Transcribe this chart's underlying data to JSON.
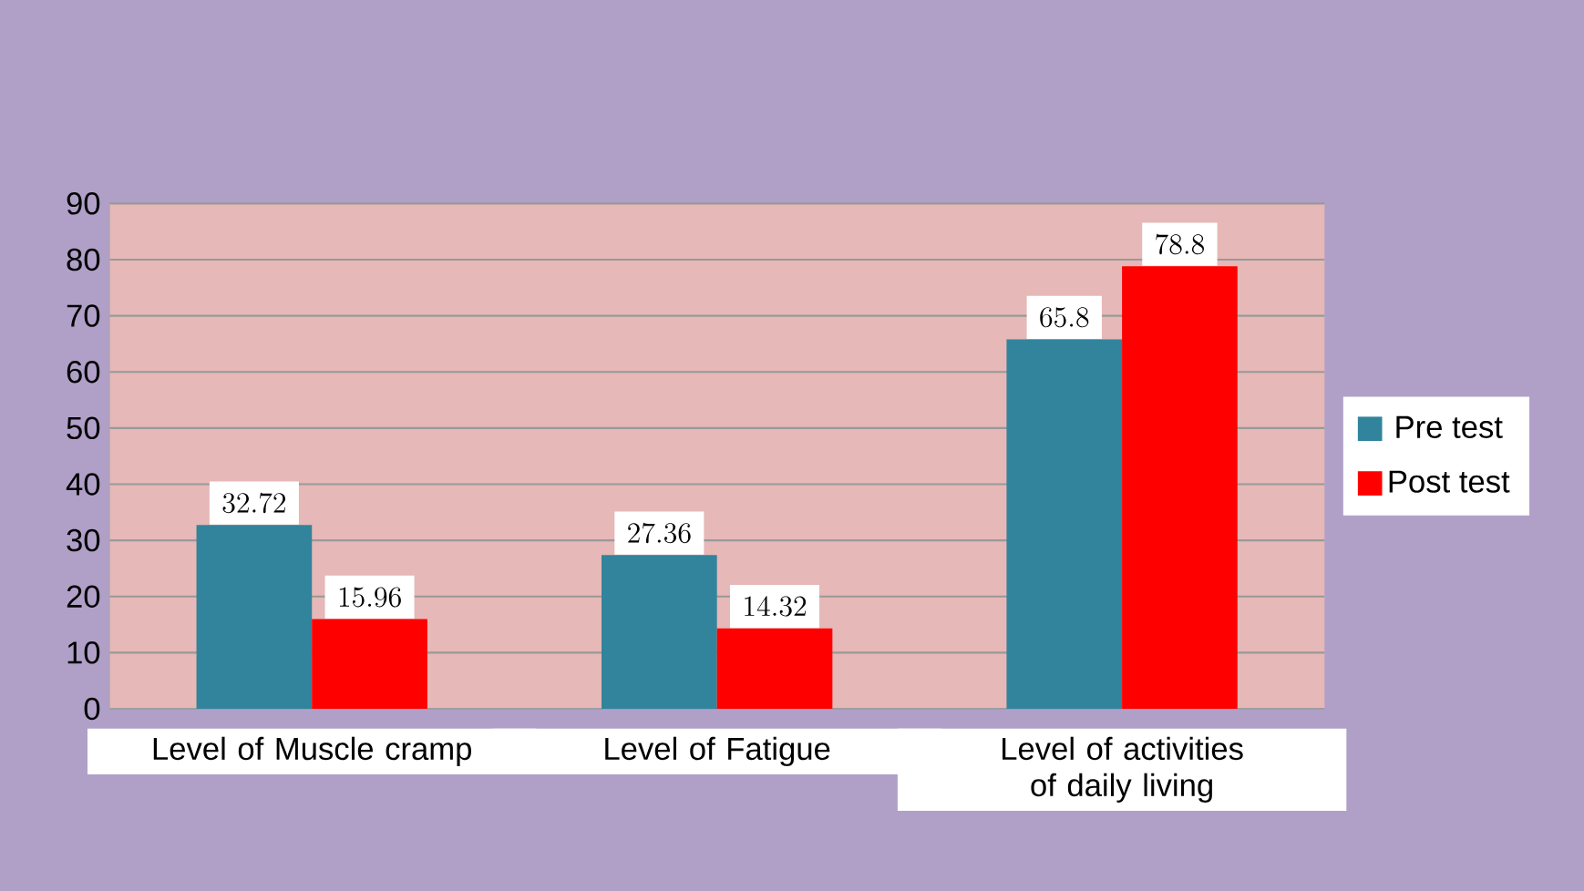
{
  "chart_data": {
    "type": "bar",
    "categories": [
      "Level of Muscle cramp",
      "Level of Fatigue",
      "Level of activities of daily living"
    ],
    "series": [
      {
        "name": "Pre test",
        "color": "#31849b",
        "values": [
          32.72,
          27.36,
          65.8
        ]
      },
      {
        "name": "Post test",
        "color": "#ff0000",
        "values": [
          15.96,
          14.32,
          78.8
        ]
      }
    ],
    "ylim": [
      0,
      90
    ],
    "yticks": [
      0,
      10,
      20,
      30,
      40,
      50,
      60,
      70,
      80,
      90
    ],
    "grid": "y",
    "legend": "right",
    "data_labels": true
  }
}
